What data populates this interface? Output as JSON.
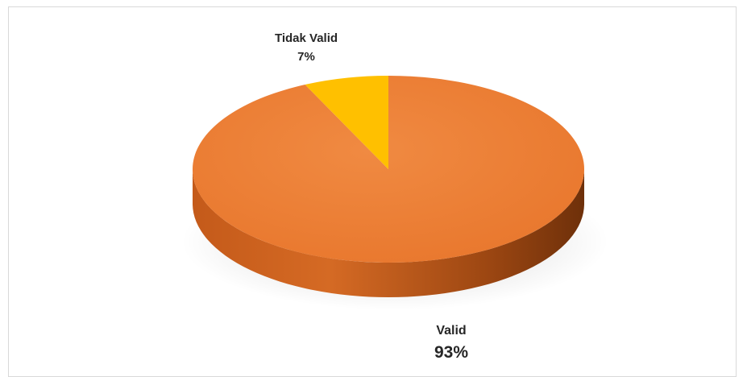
{
  "chart_data": {
    "type": "pie",
    "style": "3d",
    "categories": [
      "Valid",
      "Tidak Valid"
    ],
    "values": [
      93,
      7
    ],
    "value_labels": [
      "93%",
      "7%"
    ],
    "colors": [
      "#ed7d31",
      "#ffc000"
    ],
    "title": "",
    "legend": "none"
  }
}
